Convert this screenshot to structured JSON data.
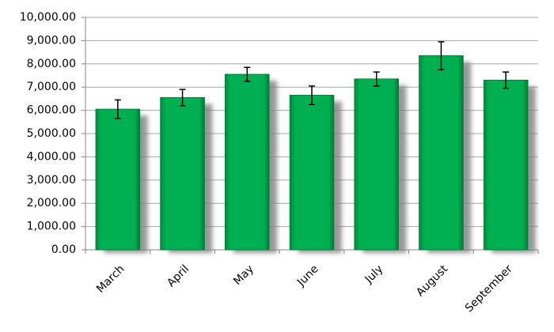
{
  "chart_data": {
    "type": "bar",
    "categories": [
      "March",
      "April",
      "May",
      "June",
      "July",
      "August",
      "September"
    ],
    "values": [
      6050,
      6550,
      7550,
      6650,
      7350,
      8350,
      7300
    ],
    "errors": [
      400,
      350,
      300,
      400,
      300,
      600,
      350
    ],
    "color": "#00b050",
    "ylim": [
      0,
      10000
    ],
    "yticks": [
      {
        "value": 0,
        "label": "0.00"
      },
      {
        "value": 1000,
        "label": "1,000.00"
      },
      {
        "value": 2000,
        "label": "2,000.00"
      },
      {
        "value": 3000,
        "label": "3,000.00"
      },
      {
        "value": 4000,
        "label": "4,000.00"
      },
      {
        "value": 5000,
        "label": "5,000.00"
      },
      {
        "value": 6000,
        "label": "6,000.00"
      },
      {
        "value": 7000,
        "label": "7,000.00"
      },
      {
        "value": 8000,
        "label": "8,000.00"
      },
      {
        "value": 9000,
        "label": "9,000.00"
      },
      {
        "value": 10000,
        "label": "10,000.00"
      }
    ],
    "grid": true
  }
}
